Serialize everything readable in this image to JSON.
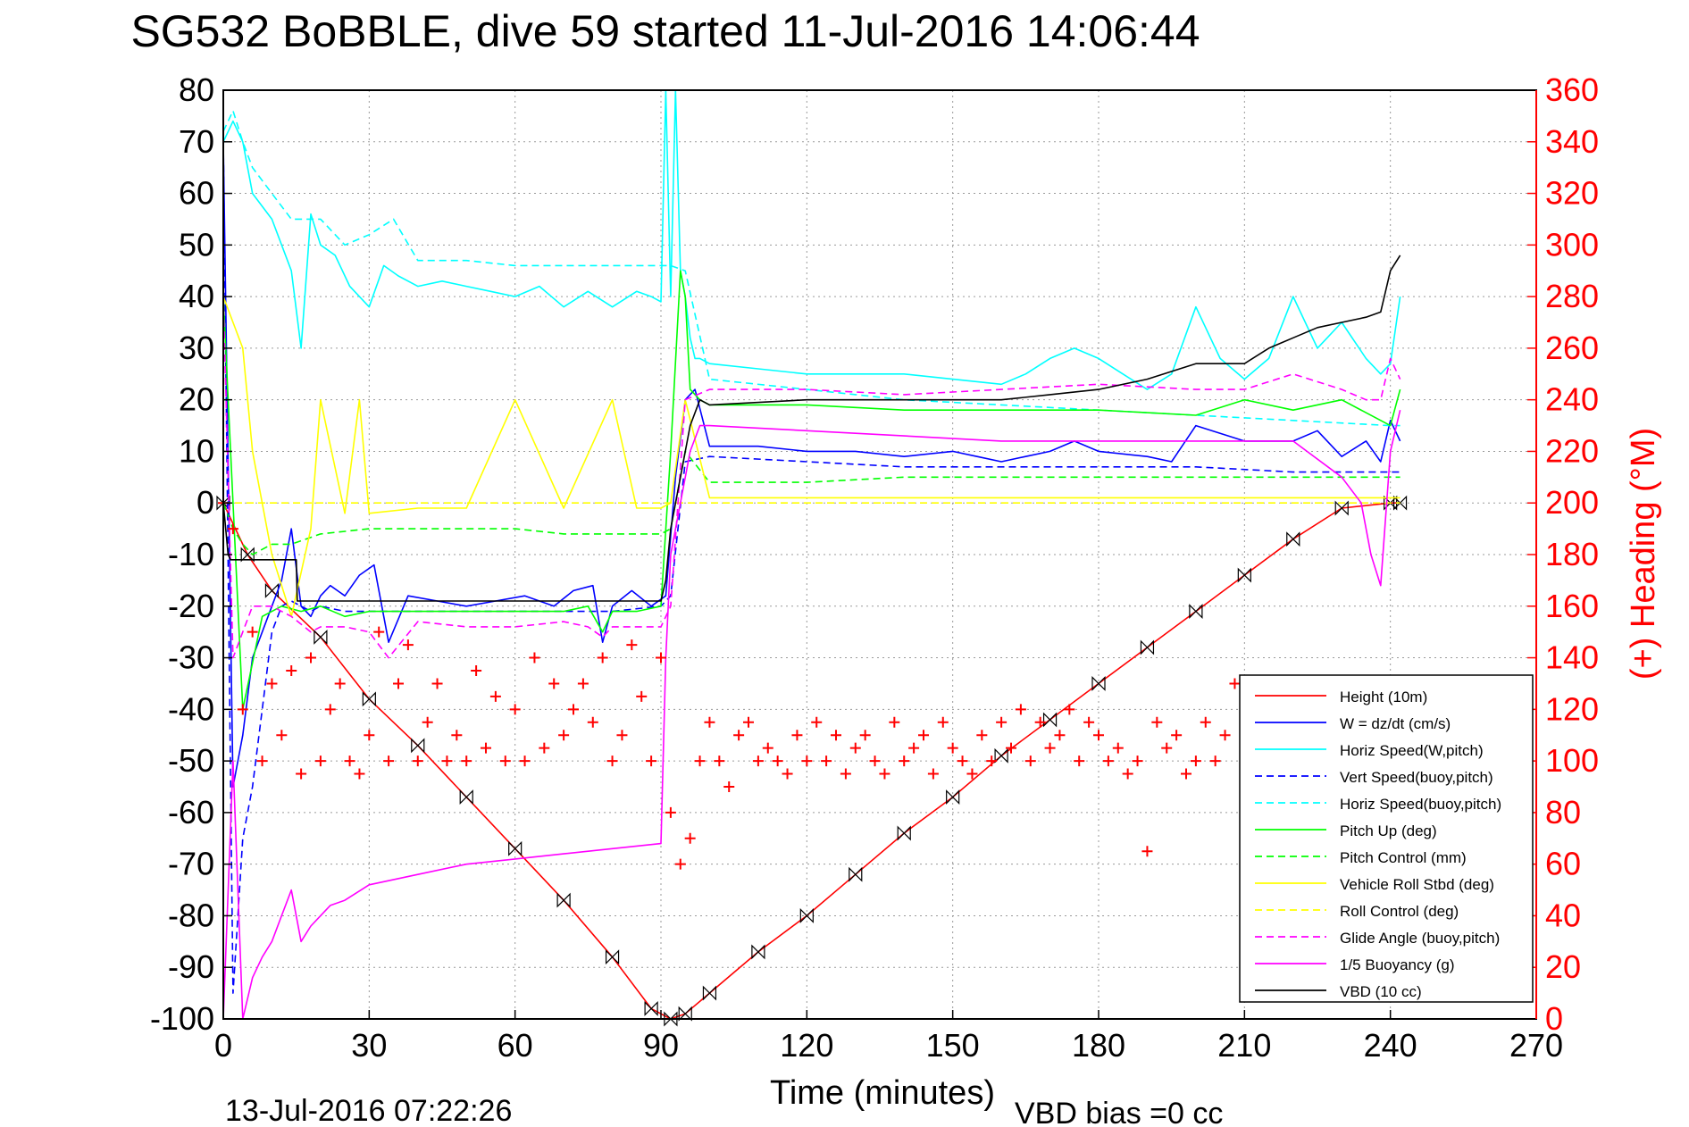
{
  "chart_data": {
    "type": "line",
    "title": "SG532 BoBBLE, dive 59 started 11-Jul-2016 14:06:44",
    "xlabel": "Time (minutes)",
    "ylabel_right": "(+) Heading (°M)",
    "footer_left": "13-Jul-2016 07:22:26",
    "footer_right": "VBD bias =0 cc",
    "xlim": [
      0,
      270
    ],
    "ylim_left": [
      -100,
      80
    ],
    "ylim_right": [
      0,
      360
    ],
    "xticks": [
      0,
      30,
      60,
      90,
      120,
      150,
      180,
      210,
      240,
      270
    ],
    "yticks_left": [
      80,
      70,
      60,
      50,
      40,
      30,
      20,
      10,
      0,
      -10,
      -20,
      -30,
      -40,
      -50,
      -60,
      -70,
      -80,
      -90,
      -100
    ],
    "yticks_right": [
      360,
      340,
      320,
      300,
      280,
      260,
      240,
      220,
      200,
      180,
      160,
      140,
      120,
      100,
      80,
      60,
      40,
      20,
      0
    ],
    "grid": true,
    "legend_position": "bottom-right",
    "colors": {
      "axis": "#000000",
      "right_axis": "#ff0000",
      "grid": "#808080"
    },
    "legend": [
      {
        "label": "Height (10m)",
        "color": "#ff0000",
        "dash": false
      },
      {
        "label": "W = dz/dt (cm/s)",
        "color": "#0000ff",
        "dash": false
      },
      {
        "label": "Horiz Speed(W,pitch)",
        "color": "#00ffff",
        "dash": false
      },
      {
        "label": "Vert Speed(buoy,pitch)",
        "color": "#0000ff",
        "dash": true
      },
      {
        "label": "Horiz Speed(buoy,pitch)",
        "color": "#00ffff",
        "dash": true
      },
      {
        "label": "Pitch Up (deg)",
        "color": "#00ff00",
        "dash": false
      },
      {
        "label": "Pitch Control (mm)",
        "color": "#00ff00",
        "dash": true
      },
      {
        "label": "Vehicle Roll Stbd (deg)",
        "color": "#ffff00",
        "dash": false
      },
      {
        "label": "Roll Control (deg)",
        "color": "#ffff00",
        "dash": true
      },
      {
        "label": "Glide Angle (buoy,pitch)",
        "color": "#ff00ff",
        "dash": true
      },
      {
        "label": "1/5 Buoyancy (g)",
        "color": "#ff00ff",
        "dash": false
      },
      {
        "label": "VBD (10 cc)",
        "color": "#000000",
        "dash": false
      }
    ],
    "series": [
      {
        "name": "Height (10m)",
        "color": "#ff0000",
        "dash": false,
        "axis": "left",
        "x": [
          0,
          5,
          10,
          20,
          30,
          40,
          50,
          60,
          70,
          80,
          88,
          92,
          95,
          100,
          110,
          120,
          130,
          140,
          150,
          160,
          170,
          180,
          190,
          200,
          210,
          220,
          230,
          240,
          242
        ],
        "y": [
          0,
          -10,
          -17,
          -26,
          -38,
          -47,
          -57,
          -67,
          -77,
          -88,
          -98,
          -100,
          -99,
          -95,
          -87,
          -80,
          -72,
          -64,
          -57,
          -49,
          -42,
          -35,
          -28,
          -21,
          -14,
          -7,
          -1,
          0,
          0
        ]
      },
      {
        "name": "W = dz/dt (cm/s)",
        "color": "#0000ff",
        "dash": false,
        "axis": "left",
        "x": [
          0,
          2,
          4,
          6,
          8,
          10,
          12,
          14,
          16,
          18,
          20,
          22,
          25,
          28,
          31,
          34,
          38,
          44,
          50,
          56,
          62,
          68,
          72,
          76,
          78,
          80,
          84,
          88,
          91,
          93,
          95,
          97,
          100,
          110,
          120,
          130,
          140,
          150,
          155,
          160,
          165,
          170,
          175,
          180,
          190,
          195,
          200,
          210,
          220,
          225,
          230,
          235,
          238,
          240,
          242
        ],
        "y": [
          70,
          -55,
          -45,
          -30,
          -25,
          -20,
          -15,
          -5,
          -20,
          -22,
          -18,
          -16,
          -18,
          -14,
          -12,
          -27,
          -18,
          -19,
          -20,
          -19,
          -18,
          -20,
          -17,
          -16,
          -27,
          -20,
          -17,
          -20,
          -18,
          5,
          20,
          22,
          11,
          11,
          10,
          10,
          9,
          10,
          9,
          8,
          9,
          10,
          12,
          10,
          9,
          8,
          15,
          12,
          12,
          14,
          9,
          12,
          8,
          16,
          12
        ]
      },
      {
        "name": "Horiz Speed(W,pitch)",
        "color": "#00ffff",
        "dash": false,
        "axis": "left",
        "x": [
          0,
          2,
          4,
          6,
          10,
          14,
          16,
          18,
          20,
          23,
          26,
          30,
          33,
          36,
          40,
          45,
          50,
          55,
          60,
          65,
          70,
          75,
          80,
          85,
          88,
          90,
          91,
          92,
          93,
          94,
          95,
          96,
          97,
          98,
          100,
          110,
          120,
          130,
          140,
          150,
          160,
          165,
          170,
          175,
          180,
          185,
          190,
          195,
          200,
          205,
          210,
          215,
          220,
          225,
          230,
          235,
          238,
          240,
          242
        ],
        "y": [
          70,
          74,
          70,
          60,
          55,
          45,
          30,
          56,
          50,
          48,
          42,
          38,
          46,
          44,
          42,
          43,
          42,
          41,
          40,
          42,
          38,
          41,
          38,
          41,
          40,
          39,
          80,
          40,
          80,
          45,
          40,
          32,
          28,
          28,
          27,
          26,
          25,
          25,
          25,
          24,
          23,
          25,
          28,
          30,
          28,
          25,
          22,
          25,
          38,
          28,
          24,
          28,
          40,
          30,
          35,
          28,
          25,
          27,
          40
        ]
      },
      {
        "name": "Vert Speed(buoy,pitch)",
        "color": "#0000ff",
        "dash": true,
        "axis": "left",
        "x": [
          0,
          2,
          4,
          6,
          8,
          10,
          12,
          14,
          16,
          18,
          20,
          25,
          30,
          40,
          50,
          60,
          70,
          80,
          90,
          92,
          95,
          100,
          120,
          140,
          160,
          180,
          200,
          220,
          240,
          242
        ],
        "y": [
          70,
          -95,
          -65,
          -55,
          -40,
          -25,
          -20,
          -19,
          -20,
          -21,
          -20,
          -21,
          -21,
          -21,
          -21,
          -21,
          -21,
          -21,
          -20,
          -18,
          8,
          9,
          8,
          7,
          7,
          7,
          7,
          6,
          6,
          6
        ]
      },
      {
        "name": "Horiz Speed(buoy,pitch)",
        "color": "#00ffff",
        "dash": true,
        "axis": "left",
        "x": [
          0,
          2,
          4,
          6,
          10,
          14,
          18,
          20,
          25,
          30,
          35,
          40,
          50,
          60,
          70,
          80,
          88,
          90,
          92,
          95,
          100,
          120,
          140,
          160,
          180,
          200,
          220,
          240,
          242
        ],
        "y": [
          72,
          76,
          70,
          65,
          60,
          55,
          55,
          55,
          50,
          52,
          55,
          47,
          47,
          46,
          46,
          46,
          46,
          46,
          46,
          45,
          24,
          22,
          20,
          19,
          18,
          17,
          16,
          15,
          15
        ]
      },
      {
        "name": "Pitch Up (deg)",
        "color": "#00ff00",
        "dash": false,
        "axis": "left",
        "x": [
          0,
          4,
          8,
          12,
          16,
          20,
          25,
          30,
          40,
          50,
          60,
          70,
          75,
          78,
          80,
          85,
          90,
          92,
          94,
          95,
          96,
          98,
          100,
          120,
          140,
          160,
          180,
          200,
          210,
          220,
          230,
          240,
          242
        ],
        "y": [
          40,
          -40,
          -22,
          -20,
          -21,
          -20,
          -22,
          -21,
          -21,
          -21,
          -21,
          -21,
          -20,
          -25,
          -21,
          -21,
          -20,
          10,
          45,
          40,
          22,
          20,
          19,
          19,
          18,
          18,
          18,
          17,
          20,
          18,
          20,
          15,
          22
        ]
      },
      {
        "name": "Pitch Control (mm)",
        "color": "#00ff00",
        "dash": true,
        "axis": "left",
        "x": [
          0,
          2,
          4,
          6,
          8,
          10,
          14,
          20,
          30,
          40,
          50,
          60,
          70,
          80,
          90,
          92,
          95,
          100,
          120,
          140,
          160,
          180,
          200,
          210,
          220,
          230,
          240,
          242
        ],
        "y": [
          0,
          -5,
          -8,
          -10,
          -9,
          -8,
          -8,
          -6,
          -5,
          -5,
          -5,
          -5,
          -6,
          -6,
          -6,
          -5,
          10,
          4,
          4,
          5,
          5,
          5,
          5,
          5,
          5,
          5,
          5,
          5
        ]
      },
      {
        "name": "Vehicle Roll Stbd (deg)",
        "color": "#ffff00",
        "dash": false,
        "axis": "left",
        "x": [
          0,
          2,
          4,
          6,
          10,
          14,
          18,
          20,
          25,
          28,
          30,
          40,
          50,
          60,
          70,
          80,
          85,
          90,
          92,
          95,
          100,
          120,
          140,
          160,
          180,
          200,
          220,
          240,
          242
        ],
        "y": [
          40,
          35,
          30,
          10,
          -10,
          -22,
          -5,
          20,
          -2,
          20,
          -2,
          -1,
          -1,
          20,
          -1,
          20,
          -1,
          -1,
          0,
          20,
          1,
          1,
          1,
          1,
          1,
          1,
          1,
          1,
          1
        ]
      },
      {
        "name": "Roll Control (deg)",
        "color": "#ffff00",
        "dash": true,
        "axis": "left",
        "x": [
          0,
          10,
          40,
          80,
          90,
          92,
          94,
          96,
          100,
          150,
          200,
          210,
          240,
          242
        ],
        "y": [
          0,
          0,
          0,
          0,
          0,
          0,
          0,
          0,
          0,
          0,
          0,
          0,
          0,
          0
        ]
      },
      {
        "name": "Glide Angle (buoy,pitch)",
        "color": "#ff00ff",
        "dash": true,
        "axis": "left",
        "x": [
          0,
          2,
          4,
          6,
          10,
          14,
          18,
          20,
          25,
          30,
          34,
          40,
          50,
          60,
          70,
          75,
          78,
          80,
          85,
          88,
          90,
          92,
          95,
          100,
          120,
          140,
          160,
          180,
          200,
          210,
          220,
          230,
          235,
          238,
          240,
          242
        ],
        "y": [
          40,
          -30,
          -25,
          -20,
          -20,
          -22,
          -25,
          -24,
          -24,
          -25,
          -30,
          -23,
          -24,
          -24,
          -23,
          -24,
          -26,
          -24,
          -24,
          -24,
          -24,
          -20,
          20,
          22,
          22,
          21,
          22,
          23,
          22,
          22,
          25,
          22,
          20,
          20,
          28,
          24
        ]
      },
      {
        "name": "1/5 Buoyancy (g)",
        "color": "#ff00ff",
        "dash": false,
        "axis": "left",
        "x": [
          0,
          2,
          4,
          6,
          8,
          10,
          12,
          14,
          16,
          18,
          20,
          22,
          25,
          30,
          40,
          50,
          60,
          70,
          80,
          90,
          91,
          92,
          94,
          96,
          98,
          100,
          120,
          140,
          160,
          180,
          200,
          210,
          220,
          230,
          234,
          236,
          238,
          240,
          242
        ],
        "y": [
          -100,
          -50,
          -100,
          -92,
          -88,
          -85,
          -80,
          -75,
          -85,
          -82,
          -80,
          -78,
          -77,
          -74,
          -72,
          -70,
          -69,
          -68,
          -67,
          -66,
          -30,
          -10,
          0,
          10,
          15,
          15,
          14,
          13,
          12,
          12,
          12,
          12,
          12,
          5,
          0,
          -10,
          -16,
          10,
          18
        ]
      },
      {
        "name": "VBD (10 cc)",
        "color": "#000000",
        "dash": false,
        "axis": "left",
        "x": [
          0,
          1,
          1.5,
          2,
          15,
          15.2,
          20,
          40,
          60,
          80,
          90,
          91,
          92,
          94,
          96,
          98,
          100,
          120,
          140,
          160,
          170,
          180,
          190,
          200,
          210,
          215,
          220,
          225,
          230,
          235,
          238,
          240,
          242
        ],
        "y": [
          0,
          -10,
          -11,
          -11,
          -11,
          -19,
          -19,
          -19,
          -19,
          -19,
          -19,
          -15,
          -5,
          5,
          15,
          20,
          19,
          20,
          20,
          20,
          21,
          22,
          24,
          27,
          27,
          30,
          32,
          34,
          35,
          36,
          37,
          45,
          48
        ]
      },
      {
        "name": "Heading (+)",
        "color": "#ff0000",
        "dash": false,
        "axis": "right",
        "marker": "+",
        "x": [
          0,
          2,
          4,
          6,
          8,
          10,
          12,
          14,
          16,
          18,
          20,
          22,
          24,
          26,
          28,
          30,
          32,
          34,
          36,
          38,
          40,
          42,
          44,
          46,
          48,
          50,
          52,
          54,
          56,
          58,
          60,
          62,
          64,
          66,
          68,
          70,
          72,
          74,
          76,
          78,
          80,
          82,
          84,
          86,
          88,
          90,
          92,
          94,
          96,
          98,
          100,
          102,
          104,
          106,
          108,
          110,
          112,
          114,
          116,
          118,
          120,
          122,
          124,
          126,
          128,
          130,
          132,
          134,
          136,
          138,
          140,
          142,
          144,
          146,
          148,
          150,
          152,
          154,
          156,
          158,
          160,
          162,
          164,
          166,
          168,
          170,
          172,
          174,
          176,
          178,
          180,
          182,
          184,
          186,
          188,
          190,
          192,
          194,
          196,
          198,
          200,
          202,
          204,
          206,
          208
        ],
        "y": [
          200,
          190,
          120,
          150,
          100,
          130,
          110,
          135,
          95,
          140,
          100,
          120,
          130,
          100,
          95,
          110,
          150,
          100,
          130,
          145,
          100,
          115,
          130,
          100,
          110,
          100,
          135,
          105,
          125,
          100,
          120,
          100,
          140,
          105,
          130,
          110,
          120,
          130,
          115,
          140,
          100,
          110,
          145,
          125,
          100,
          140,
          80,
          60,
          70,
          100,
          115,
          100,
          90,
          110,
          115,
          100,
          105,
          100,
          95,
          110,
          100,
          115,
          100,
          110,
          95,
          105,
          110,
          100,
          95,
          115,
          100,
          105,
          110,
          95,
          115,
          105,
          100,
          95,
          110,
          100,
          115,
          105,
          120,
          100,
          115,
          105,
          110,
          120,
          100,
          115,
          110,
          100,
          105,
          95,
          100,
          65,
          115,
          105,
          110,
          95,
          100,
          115,
          100,
          110,
          130
        ]
      }
    ]
  }
}
